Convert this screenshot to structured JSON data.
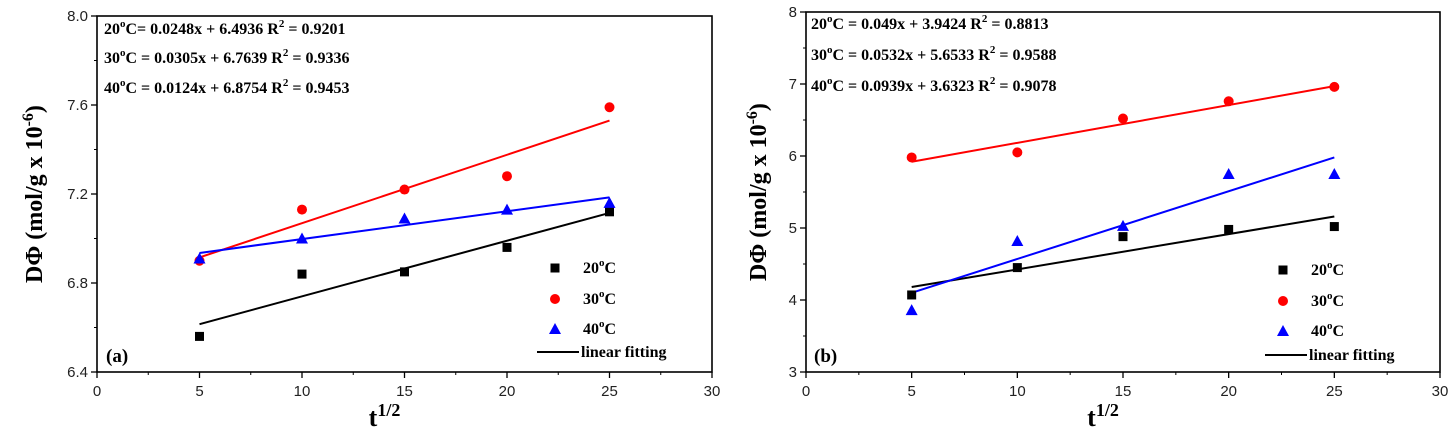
{
  "chart_data": [
    {
      "type": "scatter",
      "panel_label": "(a)",
      "xlabel": "t",
      "xlabel_sup": "1/2",
      "ylabel": "DΦ (mol/g x 10",
      "ylabel_sup": "-6",
      "ylabel_close": ")",
      "xlim": [
        0,
        30
      ],
      "ylim": [
        6.4,
        8.0
      ],
      "xticks": [
        0,
        5,
        10,
        15,
        20,
        25,
        30
      ],
      "yticks": [
        6.4,
        6.8,
        7.2,
        7.6,
        8.0
      ],
      "yticklabels": [
        "6.4",
        "6.8",
        "7.2",
        "7.6",
        "8.0"
      ],
      "x": [
        5,
        10,
        15,
        20,
        25
      ],
      "equations": [
        {
          "prefix": "20",
          "sup_o": "o",
          "mid": "C= 0.0248x + 6.4936 R",
          "sup_2": "2",
          "suffix": " = 0.9201"
        },
        {
          "prefix": "30",
          "sup_o": "o",
          "mid": "C = 0.0305x + 6.7639 R",
          "sup_2": "2",
          "suffix": " = 0.9336"
        },
        {
          "prefix": "40",
          "sup_o": "o",
          "mid": "C = 0.0124x + 6.8754 R",
          "sup_2": "2",
          "suffix": " = 0.9453"
        }
      ],
      "series": [
        {
          "name": "20",
          "name_sup": "o",
          "name_suffix": "C",
          "color": "#000000",
          "marker": "square",
          "values": [
            6.56,
            6.84,
            6.85,
            6.96,
            7.12
          ],
          "fit": [
            [
              5,
              6.615
            ],
            [
              25,
              7.115
            ]
          ]
        },
        {
          "name": "30",
          "name_sup": "o",
          "name_suffix": "C",
          "color": "#ff0000",
          "marker": "circle",
          "values": [
            6.9,
            7.13,
            7.22,
            7.28,
            7.59
          ],
          "fit": [
            [
              5,
              6.915
            ],
            [
              25,
              7.53
            ]
          ]
        },
        {
          "name": "40",
          "name_sup": "o",
          "name_suffix": "C",
          "color": "#0000ff",
          "marker": "triangle",
          "values": [
            6.91,
            7.0,
            7.09,
            7.13,
            7.16
          ],
          "fit": [
            [
              5,
              6.935
            ],
            [
              25,
              7.185
            ]
          ]
        }
      ],
      "fit_label": "linear fitting",
      "fit_color": "#000000"
    },
    {
      "type": "scatter",
      "panel_label": "(b)",
      "xlabel": "t",
      "xlabel_sup": "1/2",
      "ylabel": "DΦ (mol/g x 10",
      "ylabel_sup": "-6",
      "ylabel_close": ")",
      "xlim": [
        0,
        30
      ],
      "ylim": [
        3,
        8
      ],
      "xticks": [
        0,
        5,
        10,
        15,
        20,
        25,
        30
      ],
      "yticks": [
        3,
        4,
        5,
        6,
        7,
        8
      ],
      "yticklabels": [
        "3",
        "4",
        "5",
        "6",
        "7",
        "8"
      ],
      "x": [
        5,
        10,
        15,
        20,
        25
      ],
      "equations": [
        {
          "prefix": "20",
          "sup_o": "o",
          "mid": "C = 0.049x + 3.9424 R",
          "sup_2": "2",
          "suffix": " = 0.8813"
        },
        {
          "prefix": "30",
          "sup_o": "o",
          "mid": "C = 0.0532x + 5.6533 R",
          "sup_2": "2",
          "suffix": " = 0.9588"
        },
        {
          "prefix": "40",
          "sup_o": "o",
          "mid": "C = 0.0939x + 3.6323 R",
          "sup_2": "2",
          "suffix": " = 0.9078"
        }
      ],
      "series": [
        {
          "name": "20",
          "name_sup": "o",
          "name_suffix": "C",
          "color": "#000000",
          "marker": "square",
          "values": [
            4.07,
            4.45,
            4.88,
            4.98,
            5.02
          ],
          "fit": [
            [
              5,
              4.18
            ],
            [
              25,
              5.16
            ]
          ]
        },
        {
          "name": "30",
          "name_sup": "o",
          "name_suffix": "C",
          "color": "#ff0000",
          "marker": "circle",
          "values": [
            5.98,
            6.05,
            6.52,
            6.76,
            6.96
          ],
          "fit": [
            [
              5,
              5.92
            ],
            [
              25,
              6.97
            ]
          ]
        },
        {
          "name": "40",
          "name_sup": "o",
          "name_suffix": "C",
          "color": "#0000ff",
          "marker": "triangle",
          "values": [
            3.86,
            4.82,
            5.03,
            5.75,
            5.75
          ],
          "fit": [
            [
              5,
              4.1
            ],
            [
              25,
              5.98
            ]
          ]
        }
      ],
      "fit_label": "linear fitting",
      "fit_color": "#000000"
    }
  ]
}
